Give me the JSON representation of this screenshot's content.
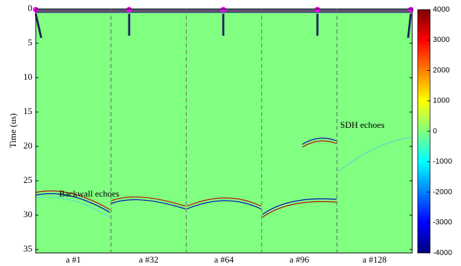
{
  "chart_data": {
    "type": "heatmap",
    "ylabel": "Time (us)",
    "ylim": [
      0,
      35.5
    ],
    "yticks": [
      0,
      5,
      10,
      15,
      20,
      25,
      30,
      35
    ],
    "categories": [
      "a #1",
      "a #32",
      "a #64",
      "a #96",
      "a #128"
    ],
    "annotations": [
      "Backwall echoes",
      "SDH echoes"
    ],
    "colorbar": {
      "lim": [
        -4000,
        4000
      ],
      "ticks": [
        -4000,
        -3000,
        -2000,
        -1000,
        0,
        1000,
        2000,
        3000,
        4000
      ],
      "colormap": "jet"
    }
  }
}
